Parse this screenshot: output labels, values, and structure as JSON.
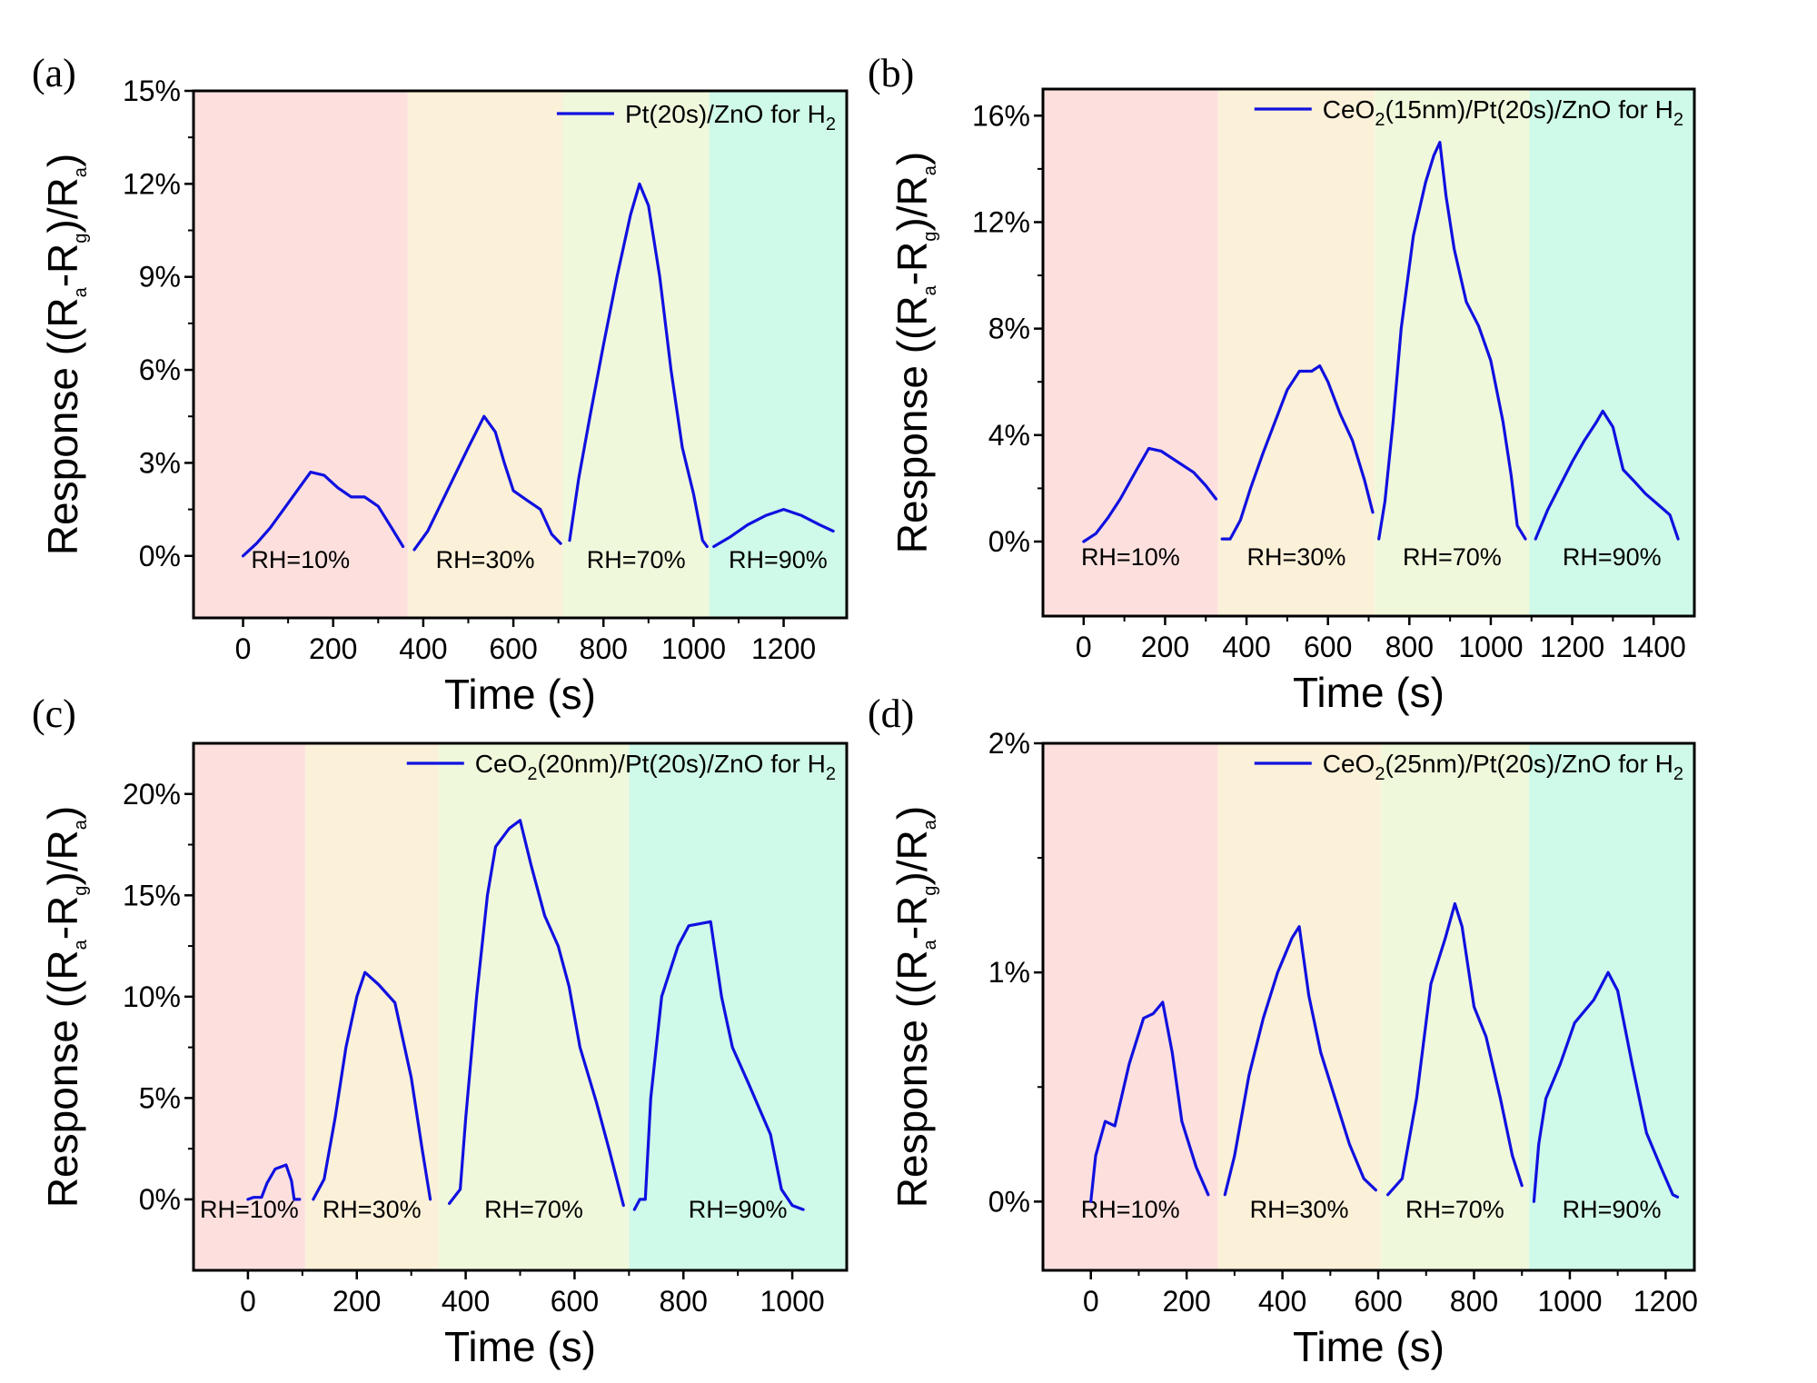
{
  "colors": {
    "line": "#1010e0",
    "region_colors": [
      "#fde0de",
      "#fbf0d8",
      "#f0f8dc",
      "#cff9e8"
    ]
  },
  "chart_data": [
    {
      "type": "line",
      "panel_label": "(a)",
      "xlabel": "Time (s)",
      "ylabel": "Response ((Ra-Rg)/Ra)",
      "ylabel_parts": {
        "a": "Response ((R",
        "sub1": "a",
        "b": "-R",
        "sub2": "g",
        "c": ")/R",
        "sub3": "a",
        "d": ")"
      },
      "legend": {
        "text": "Pt(20s)/ZnO for H",
        "sub": "2"
      },
      "xlim": [
        -110,
        1340
      ],
      "ylim": [
        -2,
        15
      ],
      "xticks": [
        0,
        200,
        400,
        600,
        800,
        1000,
        1200
      ],
      "xtick_labels": [
        "0",
        "200",
        "400",
        "600",
        "800",
        "1000",
        "1200"
      ],
      "yticks": [
        0,
        3,
        6,
        9,
        12,
        15
      ],
      "ytick_labels": [
        "0%",
        "3%",
        "6%",
        "9%",
        "12%",
        "15%"
      ],
      "regions": [
        {
          "label": "RH=10%",
          "x0": -110,
          "x1": 365
        },
        {
          "label": "RH=30%",
          "x0": 365,
          "x1": 710
        },
        {
          "label": "RH=70%",
          "x0": 710,
          "x1": 1035
        },
        {
          "label": "RH=90%",
          "x0": 1035,
          "x1": 1340
        }
      ],
      "series": [
        [
          [
            0,
            0
          ],
          [
            30,
            0.4
          ],
          [
            60,
            0.9
          ],
          [
            90,
            1.5
          ],
          [
            120,
            2.1
          ],
          [
            150,
            2.7
          ],
          [
            180,
            2.6
          ],
          [
            210,
            2.2
          ],
          [
            240,
            1.9
          ],
          [
            270,
            1.9
          ],
          [
            300,
            1.6
          ],
          [
            330,
            0.9
          ],
          [
            355,
            0.3
          ]
        ],
        [
          [
            380,
            0.2
          ],
          [
            410,
            0.8
          ],
          [
            440,
            1.7
          ],
          [
            470,
            2.6
          ],
          [
            500,
            3.5
          ],
          [
            535,
            4.5
          ],
          [
            560,
            4.0
          ],
          [
            580,
            3.0
          ],
          [
            600,
            2.1
          ],
          [
            630,
            1.8
          ],
          [
            660,
            1.5
          ],
          [
            685,
            0.7
          ],
          [
            705,
            0.4
          ]
        ],
        [
          [
            725,
            0.5
          ],
          [
            745,
            2.5
          ],
          [
            770,
            4.5
          ],
          [
            800,
            6.8
          ],
          [
            830,
            9.0
          ],
          [
            860,
            11.0
          ],
          [
            880,
            12.0
          ],
          [
            900,
            11.3
          ],
          [
            925,
            9.0
          ],
          [
            950,
            6.0
          ],
          [
            975,
            3.5
          ],
          [
            1000,
            2.0
          ],
          [
            1020,
            0.5
          ],
          [
            1030,
            0.3
          ]
        ],
        [
          [
            1045,
            0.3
          ],
          [
            1080,
            0.6
          ],
          [
            1120,
            1.0
          ],
          [
            1160,
            1.3
          ],
          [
            1200,
            1.5
          ],
          [
            1240,
            1.3
          ],
          [
            1280,
            1.0
          ],
          [
            1310,
            0.8
          ]
        ]
      ]
    },
    {
      "type": "line",
      "panel_label": "(b)",
      "xlabel": "Time (s)",
      "ylabel": "Response ((Ra-Rg)/Ra)",
      "ylabel_parts": {
        "a": "Response ((R",
        "sub1": "a",
        "b": "-R",
        "sub2": "g",
        "c": ")/R",
        "sub3": "a",
        "d": ")"
      },
      "legend": {
        "text": "CeO",
        "sub": "2",
        "text2": "(15nm)/Pt(20s)/ZnO for H",
        "sub2": "2"
      },
      "xlim": [
        -100,
        1500
      ],
      "ylim": [
        -2.8,
        17
      ],
      "xticks": [
        0,
        200,
        400,
        600,
        800,
        1000,
        1200,
        1400
      ],
      "xtick_labels": [
        "0",
        "200",
        "400",
        "600",
        "800",
        "1000",
        "1200",
        "1400"
      ],
      "yticks": [
        0,
        4,
        8,
        12,
        16
      ],
      "ytick_labels": [
        "0%",
        "4%",
        "8%",
        "12%",
        "16%"
      ],
      "regions": [
        {
          "label": "RH=10%",
          "x0": -100,
          "x1": 330
        },
        {
          "label": "RH=30%",
          "x0": 330,
          "x1": 715
        },
        {
          "label": "RH=70%",
          "x0": 715,
          "x1": 1095
        },
        {
          "label": "RH=90%",
          "x0": 1095,
          "x1": 1500
        }
      ],
      "series": [
        [
          [
            0,
            0
          ],
          [
            30,
            0.3
          ],
          [
            60,
            0.9
          ],
          [
            90,
            1.6
          ],
          [
            130,
            2.7
          ],
          [
            160,
            3.5
          ],
          [
            190,
            3.4
          ],
          [
            230,
            3.0
          ],
          [
            270,
            2.6
          ],
          [
            300,
            2.1
          ],
          [
            325,
            1.6
          ]
        ],
        [
          [
            340,
            0.1
          ],
          [
            360,
            0.1
          ],
          [
            385,
            0.8
          ],
          [
            410,
            2.0
          ],
          [
            440,
            3.3
          ],
          [
            470,
            4.5
          ],
          [
            500,
            5.7
          ],
          [
            530,
            6.4
          ],
          [
            560,
            6.4
          ],
          [
            580,
            6.6
          ],
          [
            600,
            6.0
          ],
          [
            630,
            4.8
          ],
          [
            660,
            3.8
          ],
          [
            690,
            2.3
          ],
          [
            710,
            1.1
          ]
        ],
        [
          [
            725,
            0.1
          ],
          [
            740,
            1.5
          ],
          [
            760,
            4.5
          ],
          [
            780,
            8.0
          ],
          [
            810,
            11.5
          ],
          [
            840,
            13.5
          ],
          [
            860,
            14.5
          ],
          [
            875,
            15.0
          ],
          [
            890,
            13.0
          ],
          [
            910,
            11.0
          ],
          [
            940,
            9.0
          ],
          [
            970,
            8.1
          ],
          [
            1000,
            6.8
          ],
          [
            1030,
            4.5
          ],
          [
            1050,
            2.5
          ],
          [
            1065,
            0.6
          ],
          [
            1085,
            0.1
          ]
        ],
        [
          [
            1110,
            0.1
          ],
          [
            1140,
            1.2
          ],
          [
            1170,
            2.1
          ],
          [
            1200,
            3.0
          ],
          [
            1230,
            3.8
          ],
          [
            1260,
            4.5
          ],
          [
            1275,
            4.9
          ],
          [
            1300,
            4.3
          ],
          [
            1325,
            2.7
          ],
          [
            1350,
            2.3
          ],
          [
            1380,
            1.8
          ],
          [
            1410,
            1.4
          ],
          [
            1440,
            1.0
          ],
          [
            1460,
            0.1
          ]
        ]
      ]
    },
    {
      "type": "line",
      "panel_label": "(c)",
      "xlabel": "Time (s)",
      "ylabel": "Response ((Ra-Rg)/Ra)",
      "ylabel_parts": {
        "a": "Response ((R",
        "sub1": "a",
        "b": "-R",
        "sub2": "g",
        "c": ")/R",
        "sub3": "a",
        "d": ")"
      },
      "legend": {
        "text": "CeO",
        "sub": "2",
        "text2": "(20nm)/Pt(20s)/ZnO for H",
        "sub2": "2"
      },
      "xlim": [
        -100,
        1100
      ],
      "ylim": [
        -3.5,
        22.5
      ],
      "xticks": [
        0,
        200,
        400,
        600,
        800,
        1000
      ],
      "xtick_labels": [
        "0",
        "200",
        "400",
        "600",
        "800",
        "1000"
      ],
      "yticks": [
        0,
        5,
        10,
        15,
        20
      ],
      "ytick_labels": [
        "0%",
        "5%",
        "10%",
        "15%",
        "20%"
      ],
      "regions": [
        {
          "label": "RH=10%",
          "x0": -100,
          "x1": 105
        },
        {
          "label": "RH=30%",
          "x0": 105,
          "x1": 350
        },
        {
          "label": "RH=70%",
          "x0": 350,
          "x1": 700
        },
        {
          "label": "RH=90%",
          "x0": 700,
          "x1": 1100
        }
      ],
      "series": [
        [
          [
            0,
            0
          ],
          [
            10,
            0.1
          ],
          [
            25,
            0.1
          ],
          [
            35,
            0.8
          ],
          [
            50,
            1.5
          ],
          [
            70,
            1.7
          ],
          [
            80,
            0.9
          ],
          [
            85,
            0
          ],
          [
            95,
            0
          ]
        ],
        [
          [
            120,
            0
          ],
          [
            140,
            1.0
          ],
          [
            160,
            4.0
          ],
          [
            180,
            7.5
          ],
          [
            200,
            10.0
          ],
          [
            215,
            11.2
          ],
          [
            240,
            10.6
          ],
          [
            270,
            9.7
          ],
          [
            300,
            6.0
          ],
          [
            320,
            2.5
          ],
          [
            335,
            0
          ]
        ],
        [
          [
            370,
            -0.2
          ],
          [
            390,
            0.5
          ],
          [
            400,
            4.0
          ],
          [
            420,
            10.0
          ],
          [
            440,
            15.0
          ],
          [
            455,
            17.4
          ],
          [
            480,
            18.3
          ],
          [
            500,
            18.7
          ],
          [
            520,
            16.5
          ],
          [
            545,
            14.0
          ],
          [
            570,
            12.5
          ],
          [
            590,
            10.5
          ],
          [
            610,
            7.5
          ],
          [
            640,
            4.8
          ],
          [
            665,
            2.3
          ],
          [
            690,
            -0.3
          ]
        ],
        [
          [
            710,
            -0.5
          ],
          [
            720,
            0
          ],
          [
            730,
            0
          ],
          [
            740,
            5.0
          ],
          [
            760,
            10.0
          ],
          [
            790,
            12.5
          ],
          [
            810,
            13.5
          ],
          [
            850,
            13.7
          ],
          [
            870,
            10.0
          ],
          [
            890,
            7.5
          ],
          [
            920,
            5.7
          ],
          [
            960,
            3.2
          ],
          [
            980,
            0.5
          ],
          [
            1000,
            -0.3
          ],
          [
            1020,
            -0.5
          ]
        ]
      ]
    },
    {
      "type": "line",
      "panel_label": "(d)",
      "xlabel": "Time (s)",
      "ylabel": "Response ((Ra-Rg)/Ra)",
      "ylabel_parts": {
        "a": "Response ((R",
        "sub1": "a",
        "b": "-R",
        "sub2": "g",
        "c": ")/R",
        "sub3": "a",
        "d": ")"
      },
      "legend": {
        "text": "CeO",
        "sub": "2",
        "text2": "(25nm)/Pt(20s)/ZnO for H",
        "sub2": "2"
      },
      "xlim": [
        -100,
        1260
      ],
      "ylim": [
        -0.3,
        2.0
      ],
      "xticks": [
        0,
        200,
        400,
        600,
        800,
        1000,
        1200
      ],
      "xtick_labels": [
        "0",
        "200",
        "400",
        "600",
        "800",
        "1000",
        "1200"
      ],
      "yticks": [
        0,
        1,
        2
      ],
      "ytick_labels": [
        "0%",
        "1%",
        "2%"
      ],
      "regions": [
        {
          "label": "RH=10%",
          "x0": -100,
          "x1": 265
        },
        {
          "label": "RH=30%",
          "x0": 265,
          "x1": 605
        },
        {
          "label": "RH=70%",
          "x0": 605,
          "x1": 915
        },
        {
          "label": "RH=90%",
          "x0": 915,
          "x1": 1260
        }
      ],
      "series": [
        [
          [
            0,
            0
          ],
          [
            10,
            0.2
          ],
          [
            30,
            0.35
          ],
          [
            50,
            0.33
          ],
          [
            80,
            0.6
          ],
          [
            110,
            0.8
          ],
          [
            130,
            0.82
          ],
          [
            150,
            0.87
          ],
          [
            170,
            0.65
          ],
          [
            190,
            0.35
          ],
          [
            220,
            0.15
          ],
          [
            245,
            0.03
          ]
        ],
        [
          [
            280,
            0.03
          ],
          [
            300,
            0.2
          ],
          [
            330,
            0.55
          ],
          [
            360,
            0.8
          ],
          [
            390,
            1.0
          ],
          [
            420,
            1.15
          ],
          [
            435,
            1.2
          ],
          [
            455,
            0.9
          ],
          [
            480,
            0.65
          ],
          [
            510,
            0.45
          ],
          [
            540,
            0.25
          ],
          [
            570,
            0.1
          ],
          [
            595,
            0.05
          ]
        ],
        [
          [
            620,
            0.03
          ],
          [
            650,
            0.1
          ],
          [
            680,
            0.45
          ],
          [
            710,
            0.95
          ],
          [
            740,
            1.15
          ],
          [
            760,
            1.3
          ],
          [
            775,
            1.2
          ],
          [
            800,
            0.85
          ],
          [
            825,
            0.72
          ],
          [
            855,
            0.45
          ],
          [
            880,
            0.2
          ],
          [
            900,
            0.07
          ]
        ],
        [
          [
            925,
            0
          ],
          [
            935,
            0.25
          ],
          [
            950,
            0.45
          ],
          [
            980,
            0.6
          ],
          [
            1010,
            0.78
          ],
          [
            1050,
            0.88
          ],
          [
            1080,
            1.0
          ],
          [
            1100,
            0.92
          ],
          [
            1130,
            0.6
          ],
          [
            1160,
            0.3
          ],
          [
            1190,
            0.15
          ],
          [
            1215,
            0.03
          ],
          [
            1225,
            0.02
          ]
        ]
      ]
    }
  ]
}
